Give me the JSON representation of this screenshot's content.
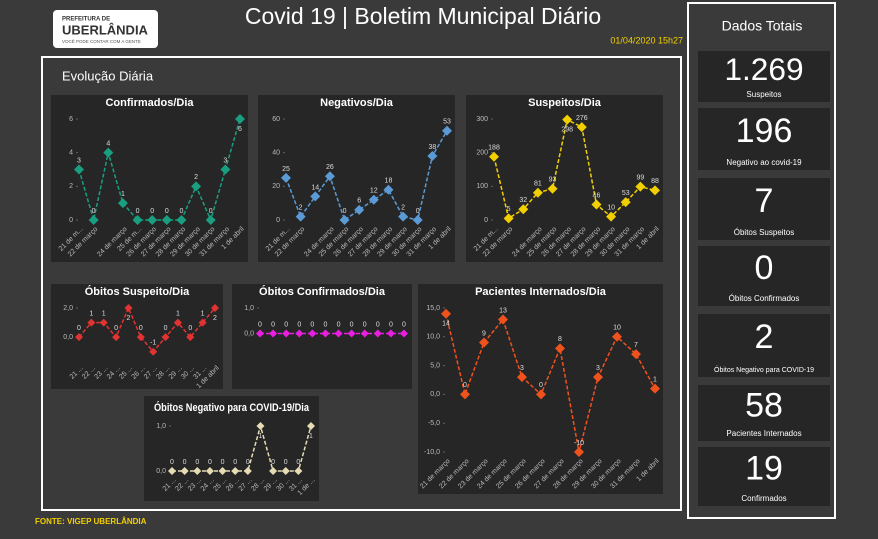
{
  "header": {
    "logo_top": "PREFEITURA DE",
    "logo_name": "UBERLÂNDIA",
    "logo_slogan": "VOCÊ PODE CONTAR COM A GENTE",
    "title": "Covid 19 | Boletim Municipal Diário",
    "date": "01/04/2020 15h27",
    "source": "FONTE: VIGEP UBERLÂNDIA"
  },
  "panel_title": "Evolução Diária",
  "totals": {
    "title": "Dados Totais",
    "items": [
      {
        "value": "1.269",
        "label": "Suspeitos"
      },
      {
        "value": 196,
        "label": "Negativo ao covid-19"
      },
      {
        "value": 7,
        "label": "Óbitos Suspeitos"
      },
      {
        "value": 0,
        "label": "Óbitos Confirmados"
      },
      {
        "value": 2,
        "label": "Óbitos Negativo para COVID-19"
      },
      {
        "value": 58,
        "label": "Pacientes Internados"
      },
      {
        "value": 19,
        "label": "Confirmados"
      }
    ]
  },
  "chart_data": [
    {
      "type": "line",
      "title": "Confirmados/Dia",
      "color": "#1a9e80",
      "categories": [
        "21 de m...",
        "22 de março",
        null,
        "24 de março",
        "25 de m...",
        "26 de março",
        "27 de março",
        "28 de março",
        "29 de março",
        "30 de março",
        "31 de março",
        "1 de abril"
      ],
      "values": [
        3,
        0,
        4,
        1,
        0,
        0,
        0,
        0,
        2,
        0,
        3,
        6
      ],
      "ylim": [
        0,
        6
      ],
      "yticks": [
        0,
        2,
        4,
        6
      ]
    },
    {
      "type": "line",
      "title": "Negativos/Dia",
      "color": "#5b9bd5",
      "categories": [
        "21 de m...",
        "22 de março",
        null,
        "24 de março",
        "25 de março",
        "26 de março",
        "27 de março",
        "28 de março",
        "29 de março",
        "30 de março",
        "31 de março",
        "1 de abril"
      ],
      "values": [
        25,
        2,
        14,
        26,
        0,
        6,
        12,
        18,
        2,
        0,
        38,
        53
      ],
      "ylim": [
        0,
        60
      ],
      "yticks": [
        0,
        20,
        40,
        60
      ]
    },
    {
      "type": "line",
      "title": "Suspeitos/Dia",
      "color": "#f2cf00",
      "categories": [
        "21 de m...",
        "22 de março",
        null,
        "24 de março",
        "25 de março",
        "26 de março",
        "27 de março",
        "28 de março",
        "29 de março",
        "30 de março",
        "31 de março",
        "1 de abril"
      ],
      "values": [
        188,
        5,
        32,
        81,
        93,
        298,
        276,
        46,
        10,
        53,
        99,
        88
      ],
      "ylim": [
        0,
        300
      ],
      "yticks": [
        0,
        100,
        200,
        300
      ]
    },
    {
      "type": "line",
      "title": "Óbitos Suspeito/Dia",
      "color": "#e23333",
      "categories": [
        "21 ...",
        "22 ...",
        "23 ...",
        "24 ...",
        "25 ...",
        "26 ...",
        "27 ...",
        "28 ...",
        "29 ...",
        "30 ...",
        "31 ...",
        "1 de abril"
      ],
      "values": [
        0,
        1,
        1,
        0,
        2,
        0,
        -1,
        0,
        1,
        0,
        1,
        2
      ],
      "ylim": [
        -1.5,
        2
      ],
      "yticks": [
        {
          "value": 0,
          "label": "0,0"
        },
        {
          "value": 2,
          "label": "2,0"
        }
      ]
    },
    {
      "type": "line",
      "title": "Óbitos Confirmados/Dia",
      "color": "#e81ee0",
      "categories": [
        null,
        null,
        null,
        null,
        null,
        null,
        null,
        null,
        null,
        null,
        null,
        null
      ],
      "values": [
        0,
        0,
        0,
        0,
        0,
        0,
        0,
        0,
        0,
        0,
        0,
        0
      ],
      "ylim": [
        -1,
        1
      ],
      "yticks": [
        {
          "value": 0,
          "label": "0,0"
        },
        {
          "value": 1,
          "label": "1,0"
        }
      ]
    },
    {
      "type": "line",
      "title": "Pacientes Internados/Dia",
      "color": "#f0521e",
      "categories": [
        "21 de março",
        "22 de março",
        "23 de março",
        "24 de março",
        "25 de março",
        "26 de março",
        "27 de março",
        "28 de março",
        "29 de março",
        "30 de março",
        "31 de março",
        "1 de abril"
      ],
      "values": [
        14,
        0,
        9,
        13,
        3,
        0,
        8,
        -10,
        3,
        10,
        7,
        1
      ],
      "ylim": [
        -10,
        15
      ],
      "yticks": [
        {
          "value": -10,
          "label": "-10,0"
        },
        {
          "value": -5,
          "label": "-5,0"
        },
        {
          "value": 0,
          "label": "0,0"
        },
        {
          "value": 5,
          "label": "5,0"
        },
        {
          "value": 10,
          "label": "10,0"
        },
        {
          "value": 15,
          "label": "15,0"
        }
      ]
    },
    {
      "type": "line",
      "title": "Óbitos Negativo para COVID-19/Dia",
      "color": "#e6dcb4",
      "categories": [
        "21 ...",
        "22 ...",
        "23 ...",
        "24 ...",
        "25 ...",
        "26 ...",
        "27 ...",
        "28 ...",
        "29 ...",
        "30 ...",
        "31 ...",
        "1 de ..."
      ],
      "values": [
        0,
        0,
        0,
        0,
        0,
        0,
        0,
        1,
        0,
        0,
        0,
        1
      ],
      "ylim": [
        0,
        1
      ],
      "yticks": [
        {
          "value": 0,
          "label": "0,0"
        },
        {
          "value": 1,
          "label": "1,0"
        }
      ]
    }
  ]
}
